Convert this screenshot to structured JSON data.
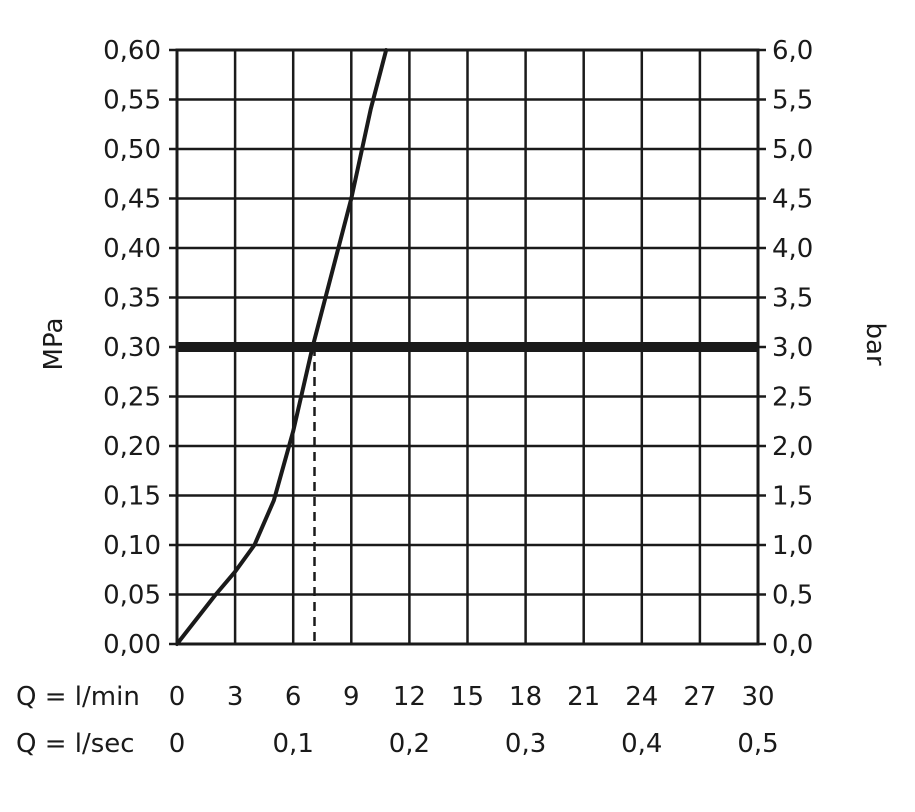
{
  "chart_data": {
    "type": "line",
    "title": "",
    "ylabel_left": "MPa",
    "ylabel_right": "bar",
    "xlim": [
      0,
      30
    ],
    "ylim": [
      0,
      0.6
    ],
    "grid": true,
    "x_ticks_lmin": [
      "0",
      "3",
      "6",
      "9",
      "12",
      "15",
      "18",
      "21",
      "24",
      "27",
      "30"
    ],
    "x_ticks_lsec": [
      "0",
      "0,1",
      "0,2",
      "0,3",
      "0,4",
      "0,5"
    ],
    "x_axis_lmin_label": "Q = l/min",
    "x_axis_lsec_label": "Q = l/sec",
    "y_ticks_mpa": [
      "0,00",
      "0,05",
      "0,10",
      "0,15",
      "0,20",
      "0,25",
      "0,30",
      "0,35",
      "0,40",
      "0,45",
      "0,50",
      "0,55",
      "0,60"
    ],
    "y_ticks_bar": [
      "0,0",
      "0,5",
      "1,0",
      "1,5",
      "2,0",
      "2,5",
      "3,0",
      "3,5",
      "4,0",
      "4,5",
      "5,0",
      "5,5",
      "6,0"
    ],
    "series": [
      {
        "x": [
          0,
          1,
          2,
          3,
          4,
          5,
          6,
          7,
          8,
          9,
          10,
          10.8
        ],
        "y": [
          0,
          0.025,
          0.05,
          0.073,
          0.1,
          0.145,
          0.215,
          0.3,
          0.375,
          0.45,
          0.54,
          0.6
        ]
      }
    ],
    "reference_line": {
      "y": 0.3
    },
    "reference_marker": {
      "x": 7.1,
      "y": 0.3
    }
  }
}
